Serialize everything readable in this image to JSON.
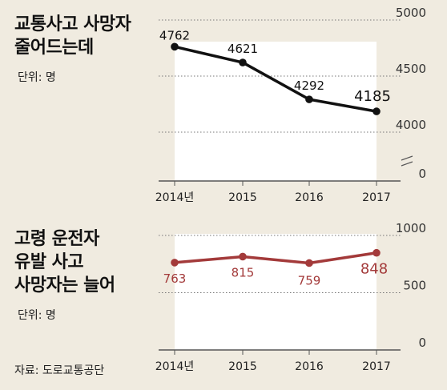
{
  "charts": [
    {
      "title_lines": [
        "교통사고 사망자",
        "줄어드는데"
      ],
      "unit": "단위: 명"
    },
    {
      "title_lines": [
        "고령 운전자",
        "유발 사고",
        "사망자는 늘어"
      ],
      "unit": "단위: 명"
    }
  ],
  "source": "자료: 도로교통공단",
  "chart_data": [
    {
      "type": "line",
      "x": [
        "2014년",
        "2015",
        "2016",
        "2017"
      ],
      "values": [
        4762,
        4621,
        4292,
        4185
      ],
      "data_labels": [
        "4762",
        "4621",
        "4292",
        "4185"
      ],
      "y_ticks": [
        0,
        4000,
        4500,
        5000
      ],
      "y_tick_labels": [
        "0",
        "4000",
        "4500",
        "5000"
      ],
      "axis_break": true,
      "line_color": "#111111",
      "label_color": "#111111"
    },
    {
      "type": "line",
      "x": [
        "2014년",
        "2015",
        "2016",
        "2017"
      ],
      "values": [
        763,
        815,
        759,
        848
      ],
      "data_labels": [
        "763",
        "815",
        "759",
        "848"
      ],
      "y_ticks": [
        0,
        500,
        1000
      ],
      "y_tick_labels": [
        "0",
        "500",
        "1000"
      ],
      "line_color": "#a33a3a",
      "label_color": "#a33a3a"
    }
  ]
}
